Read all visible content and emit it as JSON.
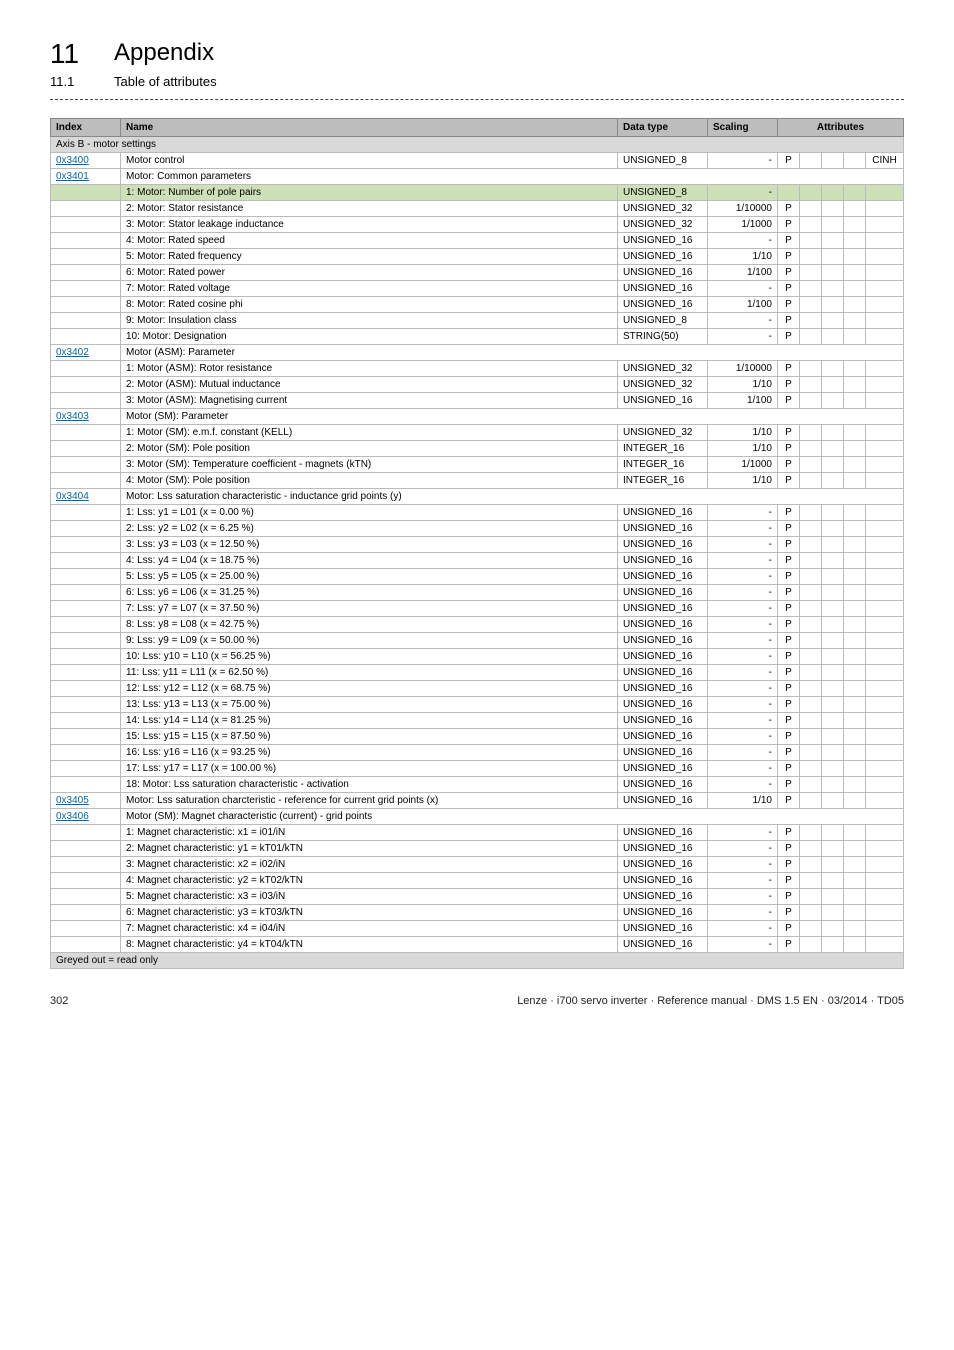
{
  "header": {
    "chapter_num": "11",
    "chapter_title": "Appendix",
    "section_num": "11.1",
    "section_title": "Table of attributes"
  },
  "table_head": {
    "index": "Index",
    "name": "Name",
    "dtype": "Data type",
    "scaling": "Scaling",
    "attributes": "Attributes"
  },
  "axis_label": "Axis B - motor settings",
  "greyed_label": "Greyed out = read only",
  "cinh": "CINH",
  "rows": [
    {
      "index": "0x3400",
      "name": "Motor control",
      "dtype": "UNSIGNED_8",
      "scaling": "-",
      "p": true,
      "cinh": true,
      "link": true
    },
    {
      "index": "0x3401",
      "name": "Motor: Common parameters",
      "link": true,
      "section": true
    },
    {
      "name": "1: Motor: Number of pole pairs",
      "dtype": "UNSIGNED_8",
      "scaling": "-",
      "highlight": true
    },
    {
      "name": "2: Motor: Stator resistance",
      "dtype": "UNSIGNED_32",
      "scaling": "1/10000",
      "p": true
    },
    {
      "name": "3: Motor: Stator leakage inductance",
      "dtype": "UNSIGNED_32",
      "scaling": "1/1000",
      "p": true
    },
    {
      "name": "4: Motor: Rated speed",
      "dtype": "UNSIGNED_16",
      "scaling": "-",
      "p": true
    },
    {
      "name": "5: Motor: Rated frequency",
      "dtype": "UNSIGNED_16",
      "scaling": "1/10",
      "p": true
    },
    {
      "name": "6: Motor: Rated power",
      "dtype": "UNSIGNED_16",
      "scaling": "1/100",
      "p": true
    },
    {
      "name": "7: Motor: Rated voltage",
      "dtype": "UNSIGNED_16",
      "scaling": "-",
      "p": true
    },
    {
      "name": "8: Motor: Rated cosine phi",
      "dtype": "UNSIGNED_16",
      "scaling": "1/100",
      "p": true
    },
    {
      "name": "9: Motor: Insulation class",
      "dtype": "UNSIGNED_8",
      "scaling": "-",
      "p": true
    },
    {
      "name": "10: Motor: Designation",
      "dtype": "STRING(50)",
      "scaling": "-",
      "p": true
    },
    {
      "index": "0x3402",
      "name": "Motor (ASM): Parameter",
      "link": true,
      "section": true
    },
    {
      "name": "1: Motor (ASM): Rotor resistance",
      "dtype": "UNSIGNED_32",
      "scaling": "1/10000",
      "p": true
    },
    {
      "name": "2: Motor (ASM): Mutual inductance",
      "dtype": "UNSIGNED_32",
      "scaling": "1/10",
      "p": true
    },
    {
      "name": "3: Motor (ASM): Magnetising current",
      "dtype": "UNSIGNED_16",
      "scaling": "1/100",
      "p": true
    },
    {
      "index": "0x3403",
      "name": "Motor (SM): Parameter",
      "link": true,
      "section": true
    },
    {
      "name": "1: Motor (SM): e.m.f. constant (KELL)",
      "dtype": "UNSIGNED_32",
      "scaling": "1/10",
      "p": true
    },
    {
      "name": "2: Motor (SM): Pole position",
      "dtype": "INTEGER_16",
      "scaling": "1/10",
      "p": true
    },
    {
      "name": "3: Motor (SM): Temperature coefficient - magnets (kTN)",
      "dtype": "INTEGER_16",
      "scaling": "1/1000",
      "p": true
    },
    {
      "name": "4: Motor (SM): Pole position",
      "dtype": "INTEGER_16",
      "scaling": "1/10",
      "p": true
    },
    {
      "index": "0x3404",
      "name": "Motor: Lss saturation characteristic - inductance grid points (y)",
      "link": true,
      "section": true
    },
    {
      "name": "1: Lss: y1 = L01 (x = 0.00 %)",
      "dtype": "UNSIGNED_16",
      "scaling": "-",
      "p": true
    },
    {
      "name": "2: Lss: y2 = L02 (x = 6.25 %)",
      "dtype": "UNSIGNED_16",
      "scaling": "-",
      "p": true
    },
    {
      "name": "3: Lss: y3 = L03 (x = 12.50 %)",
      "dtype": "UNSIGNED_16",
      "scaling": "-",
      "p": true
    },
    {
      "name": "4: Lss: y4 = L04 (x = 18.75 %)",
      "dtype": "UNSIGNED_16",
      "scaling": "-",
      "p": true
    },
    {
      "name": "5: Lss: y5 = L05 (x = 25.00 %)",
      "dtype": "UNSIGNED_16",
      "scaling": "-",
      "p": true
    },
    {
      "name": "6: Lss: y6 = L06 (x = 31.25 %)",
      "dtype": "UNSIGNED_16",
      "scaling": "-",
      "p": true
    },
    {
      "name": "7: Lss: y7 = L07 (x = 37.50 %)",
      "dtype": "UNSIGNED_16",
      "scaling": "-",
      "p": true
    },
    {
      "name": "8: Lss: y8 = L08 (x = 42.75 %)",
      "dtype": "UNSIGNED_16",
      "scaling": "-",
      "p": true
    },
    {
      "name": "9: Lss: y9 = L09 (x = 50.00 %)",
      "dtype": "UNSIGNED_16",
      "scaling": "-",
      "p": true
    },
    {
      "name": "10: Lss: y10 = L10 (x = 56.25 %)",
      "dtype": "UNSIGNED_16",
      "scaling": "-",
      "p": true
    },
    {
      "name": "11: Lss: y11 = L11 (x = 62.50 %)",
      "dtype": "UNSIGNED_16",
      "scaling": "-",
      "p": true
    },
    {
      "name": "12: Lss: y12 = L12 (x = 68.75 %)",
      "dtype": "UNSIGNED_16",
      "scaling": "-",
      "p": true
    },
    {
      "name": "13: Lss: y13 = L13 (x = 75.00 %)",
      "dtype": "UNSIGNED_16",
      "scaling": "-",
      "p": true
    },
    {
      "name": "14: Lss: y14 = L14 (x = 81.25 %)",
      "dtype": "UNSIGNED_16",
      "scaling": "-",
      "p": true
    },
    {
      "name": "15: Lss: y15 = L15 (x = 87.50 %)",
      "dtype": "UNSIGNED_16",
      "scaling": "-",
      "p": true
    },
    {
      "name": "16: Lss: y16 = L16 (x = 93.25 %)",
      "dtype": "UNSIGNED_16",
      "scaling": "-",
      "p": true
    },
    {
      "name": "17: Lss: y17 = L17 (x = 100.00 %)",
      "dtype": "UNSIGNED_16",
      "scaling": "-",
      "p": true
    },
    {
      "name": "18: Motor: Lss saturation characteristic - activation",
      "dtype": "UNSIGNED_16",
      "scaling": "-",
      "p": true
    },
    {
      "index": "0x3405",
      "name": "Motor: Lss saturation charcteristic - reference for current grid points (x)",
      "dtype": "UNSIGNED_16",
      "scaling": "1/10",
      "p": true,
      "link": true
    },
    {
      "index": "0x3406",
      "name": "Motor (SM): Magnet characteristic (current) - grid points",
      "link": true,
      "section": true
    },
    {
      "name": "1: Magnet characteristic: x1 = i01/iN",
      "dtype": "UNSIGNED_16",
      "scaling": "-",
      "p": true
    },
    {
      "name": "2: Magnet characteristic: y1 = kT01/kTN",
      "dtype": "UNSIGNED_16",
      "scaling": "-",
      "p": true
    },
    {
      "name": "3: Magnet characteristic: x2 = i02/iN",
      "dtype": "UNSIGNED_16",
      "scaling": "-",
      "p": true
    },
    {
      "name": "4: Magnet characteristic: y2 = kT02/kTN",
      "dtype": "UNSIGNED_16",
      "scaling": "-",
      "p": true
    },
    {
      "name": "5: Magnet characteristic: x3 = i03/iN",
      "dtype": "UNSIGNED_16",
      "scaling": "-",
      "p": true
    },
    {
      "name": "6: Magnet characteristic: y3 = kT03/kTN",
      "dtype": "UNSIGNED_16",
      "scaling": "-",
      "p": true
    },
    {
      "name": "7: Magnet characteristic: x4 = i04/iN",
      "dtype": "UNSIGNED_16",
      "scaling": "-",
      "p": true
    },
    {
      "name": "8: Magnet characteristic: y4 = kT04/kTN",
      "dtype": "UNSIGNED_16",
      "scaling": "-",
      "p": true
    }
  ],
  "footer": {
    "page": "302",
    "doc": "Lenze · i700 servo inverter · Reference manual · DMS 1.5 EN · 03/2014 · TD05"
  }
}
